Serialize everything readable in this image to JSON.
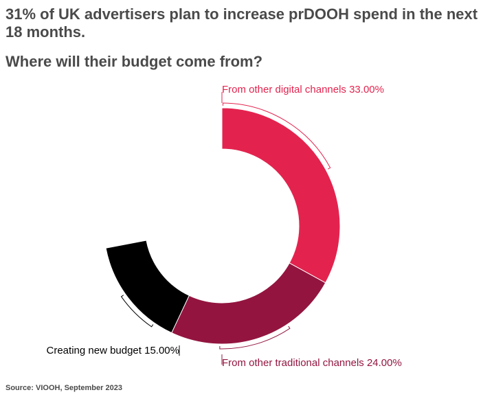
{
  "header": {
    "title": "31% of UK advertisers plan to increase prDOOH spend in the next 18 months.",
    "subtitle": "Where will their budget come from?"
  },
  "footer": {
    "source": "Source: VIOOH, September 2023"
  },
  "chart_data": {
    "type": "pie",
    "variant": "donut",
    "slices": [
      {
        "label": "From other digital channels",
        "value": 33.0,
        "display": "From other digital channels 33.00%",
        "color": "#e3234e",
        "label_color": "#e3234e"
      },
      {
        "label": "From other traditional channels",
        "value": 24.0,
        "display": "From other traditional channels 24.00%",
        "color": "#93153f",
        "label_color": "#93153f"
      },
      {
        "label": "Creating new budget",
        "value": 15.0,
        "display": "Creating new budget 15.00%",
        "color": "#000000",
        "label_color": "#000000"
      }
    ],
    "legend": "none"
  }
}
